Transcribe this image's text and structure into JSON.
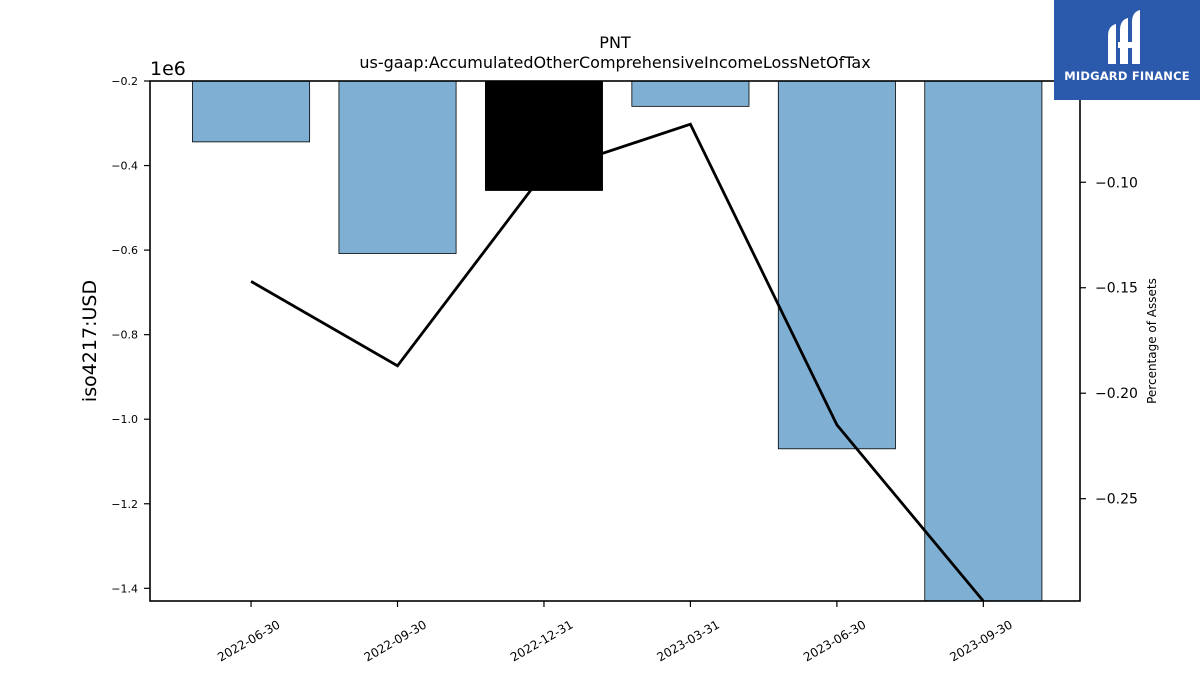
{
  "chart_data": {
    "type": "bar",
    "title": "PNT",
    "subtitle": "us-gaap:AccumulatedOtherComprehensiveIncomeLossNetOfTax",
    "ylabel": "iso4217:USD",
    "y2label": "Percentage of Assets",
    "scale_label": "1e6",
    "categories": [
      "2022-06-30",
      "2022-09-30",
      "2022-12-31",
      "2023-03-31",
      "2023-06-30",
      "2023-09-30"
    ],
    "series": [
      {
        "values": [
          -344000,
          -608000,
          -459000,
          -260000,
          -1070000,
          -1430000
        ],
        "color": "#7fb0d4",
        "axis": "left"
      },
      {
        "values": [
          -0.147,
          -0.187,
          -0.0955,
          -0.0725,
          -0.215,
          -0.2985
        ],
        "color": "#000000",
        "axis": "right"
      }
    ],
    "highlight_index": 2,
    "highlight_color": "#000000",
    "ylim": [
      -1.43,
      -0.2
    ],
    "y_ticks": [
      -0.2,
      -0.4,
      -0.6,
      -0.8,
      -1.0,
      -1.2,
      -1.4
    ],
    "y_tick_labels": [
      "−0.2",
      "−0.4",
      "−0.6",
      "−0.8",
      "−1.0",
      "−1.2",
      "−1.4"
    ],
    "y2lim": [
      -0.2985,
      -0.052
    ],
    "y2_ticks": [
      -0.1,
      -0.15,
      -0.2,
      -0.25
    ],
    "y2_tick_labels": [
      "−0.10",
      "−0.15",
      "−0.20",
      "−0.25"
    ],
    "grid": false,
    "legend": "none"
  },
  "logo": {
    "text": "MIDGARD FINANCE",
    "icon": "midgard-logo-icon",
    "bg": "#2b59ac"
  }
}
